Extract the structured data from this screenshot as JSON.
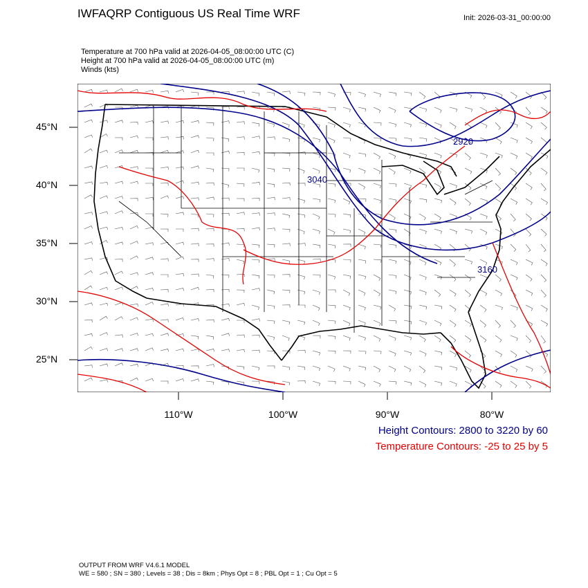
{
  "title": "IWFAQRP Contiguous US Real Time WRF",
  "init": "Init: 2026-03-31_00:00:00",
  "fields": [
    "Temperature at 700 hPa valid at 2026-04-05_08:00:00 UTC   (C)",
    "Height at 700 hPa valid at 2026-04-05_08:00:00 UTC   (m)",
    "Winds   (kts)"
  ],
  "lat_labels": [
    "45°N",
    "40°N",
    "35°N",
    "30°N",
    "25°N"
  ],
  "lon_labels": [
    "110°W",
    "100°W",
    "90°W",
    "80°W"
  ],
  "contour_labels": [
    "2920",
    "3040",
    "3160"
  ],
  "legend": {
    "height": "Height Contours: 2800 to 3220 by 60",
    "temperature": "Temperature Contours: -25 to 25 by 5"
  },
  "footer": [
    "OUTPUT FROM WRF V4.6.1 MODEL",
    "WE = 580 ; SN = 380 ; Levels = 38 ; Dis = 8km ; Phys Opt = 8 ; PBL Opt = 1 ; Cu Opt = 5"
  ],
  "colors": {
    "height_contour": "#00008b",
    "temperature_contour": "#e60000",
    "boundaries": "#000000",
    "wind_barbs": "#555555"
  }
}
